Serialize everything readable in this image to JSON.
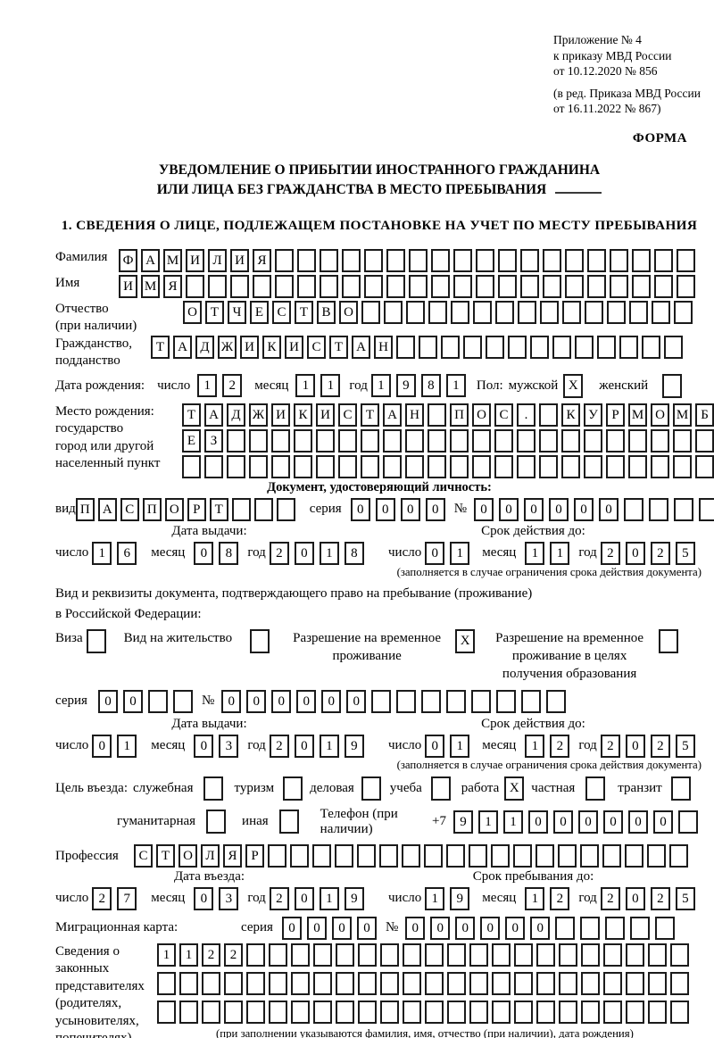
{
  "header": {
    "appendix_line1": "Приложение № 4",
    "appendix_line2": "к приказу МВД России",
    "appendix_line3": "от 10.12.2020 № 856",
    "revision_line1": "(в ред. Приказа МВД России",
    "revision_line2": "от 16.11.2022 № 867)",
    "form_label": "ФОРМА"
  },
  "title": {
    "line1": "УВЕДОМЛЕНИЕ О ПРИБЫТИИ ИНОСТРАННОГО ГРАЖДАНИНА",
    "line2": "ИЛИ ЛИЦА БЕЗ ГРАЖДАНСТВА В МЕСТО ПРЕБЫВАНИЯ"
  },
  "section1": {
    "heading": "1. СВЕДЕНИЯ О ЛИЦЕ, ПОДЛЕЖАЩЕМ ПОСТАНОВКЕ НА УЧЕТ ПО МЕСТУ ПРЕБЫВАНИЯ",
    "labels": {
      "day": "число",
      "month": "месяц",
      "year": "год",
      "series": "серия",
      "number": "№"
    },
    "surname": {
      "label": "Фамилия",
      "value": "ФАМИЛИЯ",
      "count": 26
    },
    "name": {
      "label": "Имя",
      "value": "ИМЯ",
      "count": 26
    },
    "patronymic": {
      "label1": "Отчество",
      "label2": "(при наличии)",
      "value": "ОТЧЕСТВО",
      "count": 23
    },
    "citizenship": {
      "label1": "Гражданство,",
      "label2": "подданство",
      "value": "ТАДЖИКИСТАН",
      "count": 24
    },
    "birth": {
      "label": "Дата рождения:",
      "day": {
        "value": "12",
        "count": 2
      },
      "month": {
        "value": "11",
        "count": 2
      },
      "year": {
        "value": "1981",
        "count": 4
      }
    },
    "gender": {
      "label": "Пол:",
      "male_label": "мужской",
      "male_box": {
        "value": "X",
        "count": 1
      },
      "female_label": "женский",
      "female_box": {
        "value": "",
        "count": 1
      }
    },
    "birth_place": {
      "label1": "Место рождения:",
      "label2": "государство",
      "label3": "город или другой",
      "label4": "населенный пункт",
      "row1": {
        "value": "ТАДЖИКИСТАН ПОС. КУРМОМБ",
        "count": 24
      },
      "row2": {
        "value": "ЕЗ",
        "count": 24
      },
      "row3": {
        "value": "",
        "count": 24
      }
    },
    "identity_doc": {
      "heading": "Документ, удостоверяющий личность:",
      "kind_label": "вид",
      "kind": {
        "value": "ПАСПОРТ",
        "count": 10
      },
      "series": {
        "value": "0000",
        "count": 4
      },
      "number": {
        "value": "000000",
        "count": 11
      },
      "issue_heading": "Дата выдачи:",
      "issue": {
        "day": {
          "value": "16",
          "count": 2
        },
        "month": {
          "value": "08",
          "count": 2
        },
        "year": {
          "value": "2018",
          "count": 4
        }
      },
      "valid_heading": "Срок действия до:",
      "valid": {
        "day": {
          "value": "01",
          "count": 2
        },
        "month": {
          "value": "11",
          "count": 2
        },
        "year": {
          "value": "2025",
          "count": 4
        }
      },
      "valid_note": "(заполняется в случае ограничения срока действия документа)"
    },
    "residence_doc": {
      "intro1": "Вид и реквизиты документа, подтверждающего право на пребывание (проживание)",
      "intro2": "в Российской Федерации:",
      "visa_label": "Виза",
      "visa_box": {
        "value": "",
        "count": 1
      },
      "permit_label": "Вид на жительство",
      "permit_box": {
        "value": "",
        "count": 1
      },
      "temp_label1": "Разрешение на временное",
      "temp_label2": "проживание",
      "temp_box": {
        "value": "X",
        "count": 1
      },
      "edu_label1": "Разрешение на временное",
      "edu_label2": "проживание в целях",
      "edu_label3": "получения образования",
      "edu_box": {
        "value": "",
        "count": 1
      },
      "series": {
        "value": "00",
        "count": 4
      },
      "number": {
        "value": "000000",
        "count": 14
      },
      "issue_heading": "Дата выдачи:",
      "issue": {
        "day": {
          "value": "01",
          "count": 2
        },
        "month": {
          "value": "03",
          "count": 2
        },
        "year": {
          "value": "2019",
          "count": 4
        }
      },
      "valid_heading": "Срок действия до:",
      "valid": {
        "day": {
          "value": "01",
          "count": 2
        },
        "month": {
          "value": "12",
          "count": 2
        },
        "year": {
          "value": "2025",
          "count": 4
        }
      },
      "valid_note": "(заполняется в случае ограничения срока действия документа)"
    },
    "visit": {
      "label": "Цель въезда:",
      "official_label": "служебная",
      "official_box": {
        "value": "",
        "count": 1
      },
      "tourism_label": "туризм",
      "tourism_box": {
        "value": "",
        "count": 1
      },
      "business_label": "деловая",
      "business_box": {
        "value": "",
        "count": 1
      },
      "study_label": "учеба",
      "study_box": {
        "value": "",
        "count": 1
      },
      "work_label": "работа",
      "work_box": {
        "value": "X",
        "count": 1
      },
      "private_label": "частная",
      "private_box": {
        "value": "",
        "count": 1
      },
      "transit_label": "транзит",
      "transit_box": {
        "value": "",
        "count": 1
      },
      "humanitarian_label": "гуманитарная",
      "humanitarian_box": {
        "value": "",
        "count": 1
      },
      "other_label": "иная",
      "other_box": {
        "value": "",
        "count": 1
      },
      "phone_label": "Телефон (при наличии)",
      "phone_prefix": "+7",
      "phone": {
        "value": "911000000",
        "count": 10
      }
    },
    "profession": {
      "label": "Профессия",
      "value": "СТОЛЯР",
      "count": 25
    },
    "entry": {
      "heading": "Дата въезда:",
      "day": {
        "value": "27",
        "count": 2
      },
      "month": {
        "value": "03",
        "count": 2
      },
      "year": {
        "value": "2019",
        "count": 4
      }
    },
    "stay": {
      "heading": "Срок пребывания до:",
      "day": {
        "value": "19",
        "count": 2
      },
      "month": {
        "value": "12",
        "count": 2
      },
      "year": {
        "value": "2025",
        "count": 4
      }
    },
    "migration_card": {
      "label": "Миграционная карта:",
      "series": {
        "value": "0000",
        "count": 4
      },
      "number": {
        "value": "000000",
        "count": 11
      }
    },
    "representatives": {
      "label1": "Сведения о",
      "label2": "законных",
      "label3": "представителях",
      "label4": "(родителях,",
      "label5": "усыновителях,",
      "label6": "попечителях)",
      "row1": {
        "value": "1122",
        "count": 24
      },
      "row2": {
        "value": "",
        "count": 24
      },
      "row3": {
        "value": "",
        "count": 24
      },
      "note": "(при заполнении указываются фамилия, имя, отчество (при наличии), дата рождения)"
    }
  }
}
